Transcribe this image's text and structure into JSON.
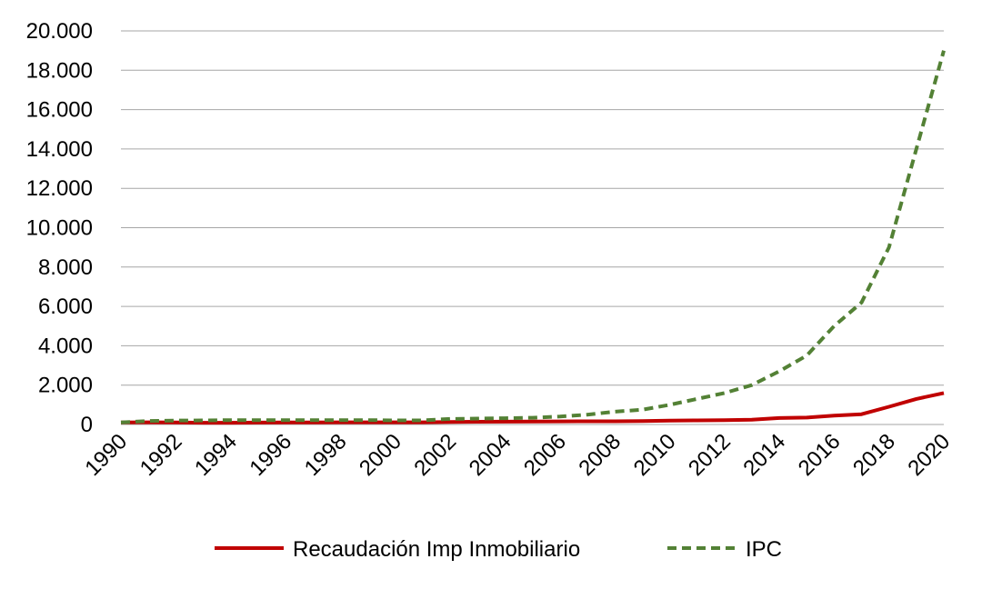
{
  "chart_data": {
    "type": "line",
    "title": "",
    "xlabel": "",
    "ylabel": "",
    "x": [
      1990,
      1991,
      1992,
      1993,
      1994,
      1995,
      1996,
      1997,
      1998,
      1999,
      2000,
      2001,
      2002,
      2003,
      2004,
      2005,
      2006,
      2007,
      2008,
      2009,
      2010,
      2011,
      2012,
      2013,
      2014,
      2015,
      2016,
      2017,
      2018,
      2019,
      2020
    ],
    "ylim": [
      0,
      20000
    ],
    "y_ticks": [
      0,
      2000,
      4000,
      6000,
      8000,
      10000,
      12000,
      14000,
      16000,
      18000,
      20000
    ],
    "y_tick_labels": [
      "0",
      "2.000",
      "4.000",
      "6.000",
      "8.000",
      "10.000",
      "12.000",
      "14.000",
      "16.000",
      "18.000",
      "20.000"
    ],
    "x_tick_labels": [
      "1990",
      "1992",
      "1994",
      "1996",
      "1998",
      "2000",
      "2002",
      "2004",
      "2006",
      "2008",
      "2010",
      "2012",
      "2014",
      "2016",
      "2018",
      "2020"
    ],
    "grid": true,
    "legend_position": "bottom",
    "series": [
      {
        "name": "Recaudación Imp Inmobiliario",
        "color": "#c00000",
        "style": "solid",
        "values": [
          100,
          110,
          100,
          90,
          90,
          95,
          100,
          105,
          110,
          110,
          110,
          110,
          130,
          140,
          145,
          150,
          155,
          160,
          160,
          170,
          200,
          210,
          220,
          240,
          330,
          350,
          450,
          520,
          900,
          1300,
          1600
        ]
      },
      {
        "name": "IPC",
        "color": "#538135",
        "style": "dashed",
        "values": [
          100,
          180,
          200,
          210,
          220,
          220,
          220,
          220,
          220,
          220,
          210,
          210,
          280,
          300,
          320,
          340,
          400,
          500,
          650,
          750,
          1000,
          1300,
          1600,
          2000,
          2700,
          3500,
          5000,
          6200,
          9000,
          14000,
          19000
        ]
      }
    ]
  }
}
